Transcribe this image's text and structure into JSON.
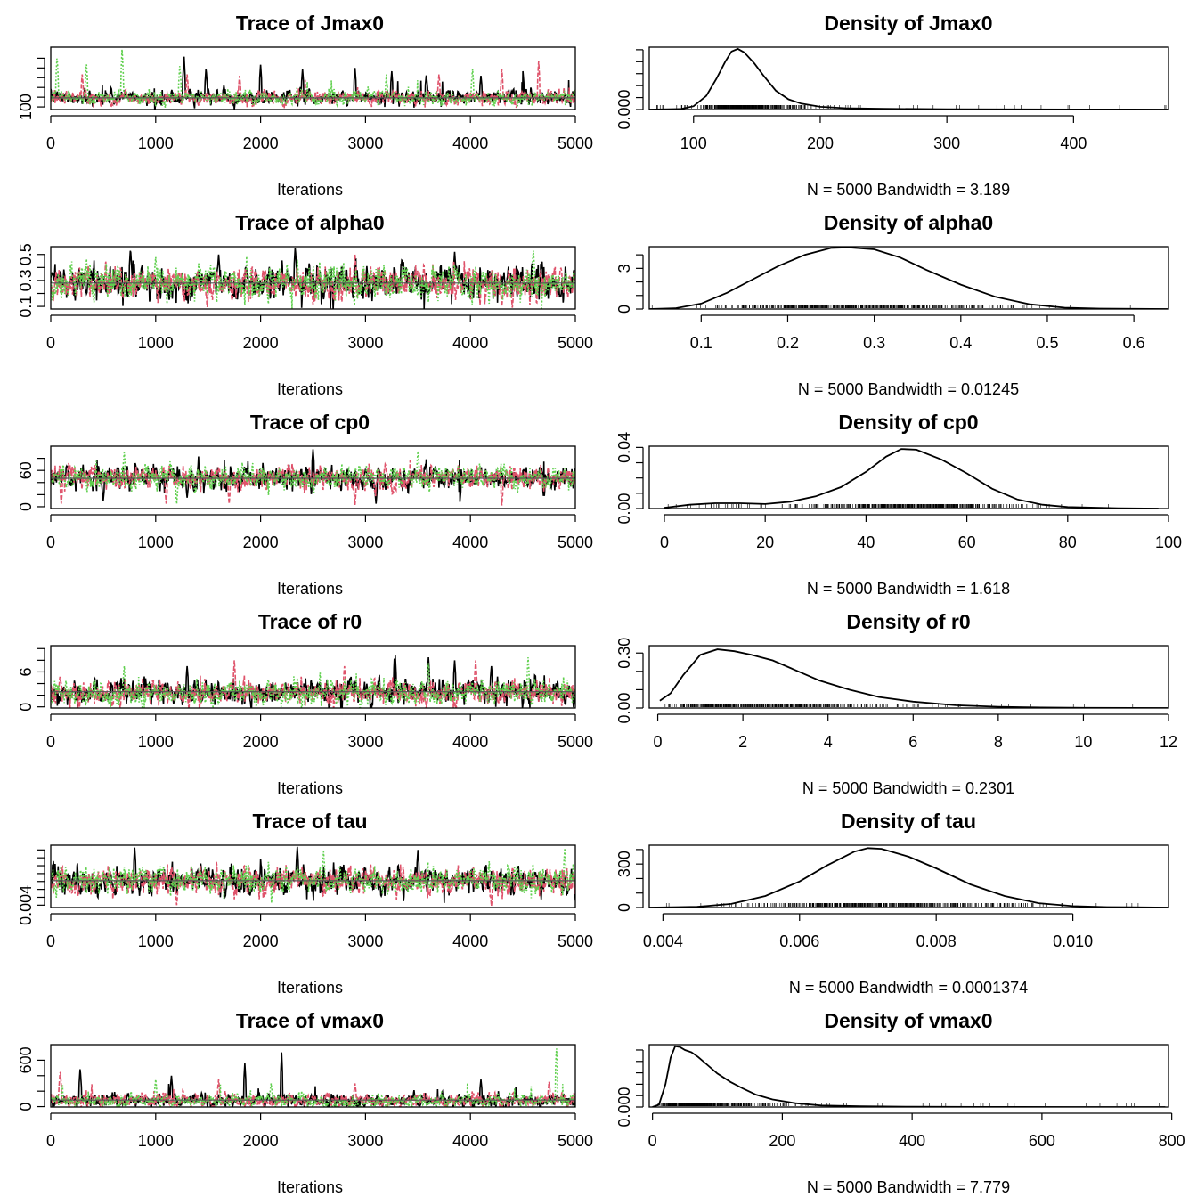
{
  "colors": {
    "chain1": "#000000",
    "chain2": "#DF536B",
    "chain3": "#61D04F"
  },
  "chart_data": [
    {
      "type": "line",
      "title": "Trace of Jmax0",
      "xlabel": "Iterations",
      "xlim": [
        0,
        5000
      ],
      "ylim": [
        96,
        192
      ],
      "x_ticks": [
        0,
        1000,
        2000,
        3000,
        4000,
        5000
      ],
      "x_tick_labels": [
        "0",
        "1000",
        "2000",
        "3000",
        "4000",
        "5000"
      ],
      "y_ticks": [
        100,
        115,
        130,
        145,
        160,
        175
      ],
      "y_tick_labels": [
        "100",
        "",
        "",
        "",
        "",
        ""
      ],
      "series": [
        {
          "color": "#000000",
          "center": 115,
          "spread": 6,
          "spikes": [
            [
              1270,
              180
            ],
            [
              1480,
              160
            ],
            [
              2000,
              165
            ],
            [
              2400,
              158
            ],
            [
              2900,
              160
            ],
            [
              3250,
              155
            ],
            [
              3580,
              150
            ],
            [
              4500,
              155
            ],
            [
              4100,
              148
            ]
          ]
        },
        {
          "color": "#DF536B",
          "center": 114,
          "spread": 6,
          "spikes": [
            [
              300,
              150
            ],
            [
              1300,
              150
            ],
            [
              1800,
              148
            ],
            [
              3700,
              150
            ],
            [
              4300,
              158
            ],
            [
              4650,
              170
            ]
          ]
        },
        {
          "color": "#61D04F",
          "center": 114,
          "spread": 6,
          "spikes": [
            [
              60,
              180
            ],
            [
              340,
              170
            ],
            [
              680,
              192
            ],
            [
              1230,
              165
            ],
            [
              3200,
              150
            ],
            [
              4020,
              160
            ]
          ]
        }
      ],
      "mean_line": 114
    },
    {
      "type": "line",
      "title": "Density of Jmax0",
      "xlabel": "N = 5000   Bandwidth = 3.189",
      "xlim": [
        65,
        475
      ],
      "ylim": [
        0,
        0.0365
      ],
      "x_ticks": [
        100,
        200,
        300,
        400
      ],
      "x_tick_labels": [
        "100",
        "200",
        "300",
        "400"
      ],
      "y_ticks": [
        0,
        0.007,
        0.014,
        0.021,
        0.028,
        0.035
      ],
      "y_tick_labels": [
        "0.000",
        "",
        "",
        "",
        "",
        ""
      ],
      "density": {
        "x": [
          65,
          90,
          100,
          110,
          118,
          125,
          130,
          135,
          140,
          148,
          155,
          165,
          175,
          185,
          200,
          220,
          250,
          300,
          350,
          400,
          475
        ],
        "y": [
          0,
          0.0003,
          0.002,
          0.008,
          0.018,
          0.028,
          0.034,
          0.0355,
          0.0335,
          0.027,
          0.02,
          0.011,
          0.006,
          0.0035,
          0.0016,
          0.0008,
          0.0004,
          0.0002,
          0.0001,
          5e-05,
          0
        ]
      }
    },
    {
      "type": "line",
      "title": "Trace of alpha0",
      "xlabel": "Iterations",
      "xlim": [
        0,
        5000
      ],
      "ylim": [
        0.08,
        0.56
      ],
      "x_ticks": [
        0,
        1000,
        2000,
        3000,
        4000,
        5000
      ],
      "x_tick_labels": [
        "0",
        "1000",
        "2000",
        "3000",
        "4000",
        "5000"
      ],
      "y_ticks": [
        0.1,
        0.2,
        0.3,
        0.4,
        0.5
      ],
      "y_tick_labels": [
        "0.1",
        "",
        "0.3",
        "",
        "0.5"
      ],
      "series": [
        {
          "color": "#000000",
          "center": 0.28,
          "spread": 0.07,
          "spikes": [
            [
              760,
              0.55
            ],
            [
              2330,
              0.56
            ],
            [
              3850,
              0.52
            ],
            [
              1600,
              0.5
            ]
          ]
        },
        {
          "color": "#DF536B",
          "center": 0.28,
          "spread": 0.07,
          "spikes": [
            [
              4300,
              0.1
            ],
            [
              4400,
              0.09
            ],
            [
              2900,
              0.5
            ]
          ]
        },
        {
          "color": "#61D04F",
          "center": 0.28,
          "spread": 0.07,
          "spikes": [
            [
              4600,
              0.53
            ],
            [
              1000,
              0.48
            ]
          ]
        }
      ],
      "mean_line": 0.28
    },
    {
      "type": "line",
      "title": "Density of alpha0",
      "xlabel": "N = 5000   Bandwidth = 0.01245",
      "xlim": [
        0.04,
        0.64
      ],
      "ylim": [
        0,
        4.6
      ],
      "x_ticks": [
        0.1,
        0.2,
        0.3,
        0.4,
        0.5,
        0.6
      ],
      "x_tick_labels": [
        "0.1",
        "0.2",
        "0.3",
        "0.4",
        "0.5",
        "0.6"
      ],
      "y_ticks": [
        0,
        1,
        2,
        3,
        4
      ],
      "y_tick_labels": [
        "0",
        "",
        "",
        "3",
        ""
      ],
      "density": {
        "x": [
          0.04,
          0.07,
          0.1,
          0.13,
          0.16,
          0.19,
          0.22,
          0.25,
          0.27,
          0.3,
          0.33,
          0.36,
          0.4,
          0.44,
          0.48,
          0.52,
          0.56,
          0.6,
          0.64
        ],
        "y": [
          0,
          0.05,
          0.4,
          1.2,
          2.2,
          3.2,
          4.0,
          4.5,
          4.55,
          4.4,
          3.8,
          2.9,
          1.8,
          0.9,
          0.35,
          0.1,
          0.03,
          0.01,
          0
        ]
      }
    },
    {
      "type": "line",
      "title": "Trace of cp0",
      "xlabel": "Iterations",
      "xlim": [
        0,
        5000
      ],
      "ylim": [
        -3,
        100
      ],
      "x_ticks": [
        0,
        1000,
        2000,
        3000,
        4000,
        5000
      ],
      "x_tick_labels": [
        "0",
        "1000",
        "2000",
        "3000",
        "4000",
        "5000"
      ],
      "y_ticks": [
        0,
        20,
        40,
        60,
        80
      ],
      "y_tick_labels": [
        "0",
        "",
        "",
        "60",
        ""
      ],
      "series": [
        {
          "color": "#000000",
          "center": 48,
          "spread": 10,
          "spikes": [
            [
              500,
              10
            ],
            [
              1300,
              15
            ],
            [
              2500,
              95
            ],
            [
              3100,
              5
            ],
            [
              3900,
              8
            ],
            [
              4700,
              10
            ]
          ]
        },
        {
          "color": "#DF536B",
          "center": 48,
          "spread": 10,
          "spikes": [
            [
              100,
              5
            ],
            [
              1100,
              5
            ],
            [
              1700,
              5
            ],
            [
              2900,
              3
            ],
            [
              4300,
              2
            ]
          ]
        },
        {
          "color": "#61D04F",
          "center": 48,
          "spread": 10,
          "spikes": [
            [
              1200,
              5
            ],
            [
              3500,
              92
            ],
            [
              700,
              90
            ]
          ]
        }
      ],
      "mean_line": 47
    },
    {
      "type": "line",
      "title": "Density of cp0",
      "xlabel": "N = 5000   Bandwidth = 1.618",
      "xlim": [
        -3,
        100
      ],
      "ylim": [
        0,
        0.0408
      ],
      "x_ticks": [
        0,
        20,
        40,
        60,
        80,
        100
      ],
      "x_tick_labels": [
        "0",
        "20",
        "40",
        "60",
        "80",
        "100"
      ],
      "y_ticks": [
        0,
        0.01,
        0.02,
        0.03,
        0.04
      ],
      "y_tick_labels": [
        "0.00",
        "",
        "",
        "",
        "0.04"
      ],
      "density": {
        "x": [
          0,
          5,
          10,
          15,
          20,
          25,
          30,
          35,
          40,
          44,
          47,
          50,
          55,
          60,
          65,
          70,
          75,
          80,
          90,
          98
        ],
        "y": [
          0.0005,
          0.0025,
          0.0035,
          0.0035,
          0.003,
          0.0045,
          0.008,
          0.014,
          0.024,
          0.034,
          0.039,
          0.0385,
          0.032,
          0.023,
          0.013,
          0.006,
          0.0025,
          0.001,
          0.0002,
          0
        ]
      }
    },
    {
      "type": "line",
      "title": "Trace of r0",
      "xlabel": "Iterations",
      "xlim": [
        0,
        5000
      ],
      "ylim": [
        -0.2,
        10.5
      ],
      "x_ticks": [
        0,
        1000,
        2000,
        3000,
        4000,
        5000
      ],
      "x_tick_labels": [
        "0",
        "1000",
        "2000",
        "3000",
        "4000",
        "5000"
      ],
      "y_ticks": [
        0,
        2,
        4,
        6,
        8,
        10
      ],
      "y_tick_labels": [
        "0",
        "",
        "",
        "6",
        "",
        ""
      ],
      "series": [
        {
          "color": "#000000",
          "center": 2.5,
          "spread": 1.2,
          "spikes": [
            [
              3280,
              10.2
            ],
            [
              3600,
              8.5
            ],
            [
              1300,
              7
            ],
            [
              3850,
              8
            ],
            [
              4200,
              7
            ]
          ]
        },
        {
          "color": "#DF536B",
          "center": 2.4,
          "spread": 1.1,
          "spikes": [
            [
              1750,
              8
            ],
            [
              2800,
              7
            ],
            [
              4050,
              8
            ]
          ]
        },
        {
          "color": "#61D04F",
          "center": 2.3,
          "spread": 1.1,
          "spikes": [
            [
              4550,
              8.5
            ],
            [
              700,
              7
            ],
            [
              3600,
              7.5
            ]
          ]
        }
      ],
      "mean_line": 2.6
    },
    {
      "type": "line",
      "title": "Density of r0",
      "xlabel": "N = 5000   Bandwidth = 0.2301",
      "xlim": [
        -0.2,
        12
      ],
      "ylim": [
        0,
        0.34
      ],
      "x_ticks": [
        0,
        2,
        4,
        6,
        8,
        10,
        12
      ],
      "x_tick_labels": [
        "0",
        "2",
        "4",
        "6",
        "8",
        "10",
        "12"
      ],
      "y_ticks": [
        0,
        0.1,
        0.2,
        0.3
      ],
      "y_tick_labels": [
        "0.00",
        "",
        "",
        "0.30"
      ],
      "density": {
        "x": [
          0.05,
          0.3,
          0.6,
          1.0,
          1.4,
          1.8,
          2.2,
          2.7,
          3.2,
          3.8,
          4.5,
          5.2,
          6.0,
          7.0,
          8.0,
          9.0,
          10.0,
          12.0
        ],
        "y": [
          0.04,
          0.08,
          0.18,
          0.29,
          0.32,
          0.31,
          0.29,
          0.26,
          0.21,
          0.15,
          0.1,
          0.06,
          0.035,
          0.015,
          0.007,
          0.003,
          0.001,
          0
        ]
      }
    },
    {
      "type": "line",
      "title": "Trace of tau",
      "xlabel": "Iterations",
      "xlim": [
        0,
        5000
      ],
      "ylim": [
        0.0037,
        0.0116
      ],
      "x_ticks": [
        0,
        1000,
        2000,
        3000,
        4000,
        5000
      ],
      "x_tick_labels": [
        "0",
        "1000",
        "2000",
        "3000",
        "4000",
        "5000"
      ],
      "y_ticks": [
        0.004,
        0.005,
        0.006,
        0.007,
        0.008,
        0.009,
        0.01,
        0.011
      ],
      "y_tick_labels": [
        "0.004",
        "",
        "",
        "",
        "",
        "",
        "",
        ""
      ],
      "series": [
        {
          "color": "#000000",
          "center": 0.0071,
          "spread": 0.0009,
          "spikes": [
            [
              800,
              0.0113
            ],
            [
              2350,
              0.0114
            ],
            [
              3500,
              0.011
            ]
          ]
        },
        {
          "color": "#DF536B",
          "center": 0.0071,
          "spread": 0.0009,
          "spikes": [
            [
              4200,
              0.0039
            ],
            [
              1200,
              0.004
            ]
          ]
        },
        {
          "color": "#61D04F",
          "center": 0.0071,
          "spread": 0.0009,
          "spikes": [
            [
              2600,
              0.0108
            ],
            [
              4900,
              0.0112
            ]
          ]
        }
      ],
      "mean_line": 0.0071
    },
    {
      "type": "line",
      "title": "Density of tau",
      "xlabel": "N = 5000   Bandwidth = 0.0001374",
      "xlim": [
        0.0038,
        0.0114
      ],
      "ylim": [
        0,
        430
      ],
      "x_ticks": [
        0.004,
        0.006,
        0.008,
        0.01
      ],
      "x_tick_labels": [
        "0.004",
        "0.006",
        "0.008",
        "0.010"
      ],
      "y_ticks": [
        0,
        100,
        200,
        300,
        400
      ],
      "y_tick_labels": [
        "0",
        "",
        "",
        "300",
        ""
      ],
      "density": {
        "x": [
          0.0038,
          0.0045,
          0.005,
          0.0055,
          0.006,
          0.0064,
          0.0068,
          0.007,
          0.0072,
          0.0076,
          0.008,
          0.0085,
          0.009,
          0.0095,
          0.01,
          0.0105,
          0.0114
        ],
        "y": [
          0,
          5,
          25,
          80,
          180,
          290,
          385,
          410,
          405,
          350,
          270,
          160,
          80,
          30,
          10,
          3,
          0
        ]
      }
    },
    {
      "type": "line",
      "title": "Trace of vmax0",
      "xlabel": "Iterations",
      "xlim": [
        0,
        5000
      ],
      "ylim": [
        -5,
        800
      ],
      "x_ticks": [
        0,
        1000,
        2000,
        3000,
        4000,
        5000
      ],
      "x_tick_labels": [
        "0",
        "1000",
        "2000",
        "3000",
        "4000",
        "5000"
      ],
      "y_ticks": [
        0,
        200,
        400,
        600
      ],
      "y_tick_labels": [
        "0",
        "",
        "",
        "600"
      ],
      "series": [
        {
          "color": "#000000",
          "center": 80,
          "spread": 45,
          "spikes": [
            [
              2200,
              700
            ],
            [
              1850,
              560
            ],
            [
              280,
              500
            ],
            [
              1150,
              400
            ],
            [
              4100,
              350
            ]
          ]
        },
        {
          "color": "#DF536B",
          "center": 80,
          "spread": 45,
          "spikes": [
            [
              90,
              480
            ],
            [
              1600,
              350
            ],
            [
              2900,
              300
            ],
            [
              4750,
              320
            ]
          ]
        },
        {
          "color": "#61D04F",
          "center": 75,
          "spread": 45,
          "spikes": [
            [
              4820,
              780
            ],
            [
              1000,
              350
            ],
            [
              2100,
              300
            ]
          ]
        }
      ],
      "mean_line": 85
    },
    {
      "type": "line",
      "title": "Density of vmax0",
      "xlabel": "N = 5000   Bandwidth = 7.779",
      "xlim": [
        -5,
        795
      ],
      "ylim": [
        0,
        0.0082
      ],
      "x_ticks": [
        0,
        200,
        400,
        600,
        800
      ],
      "x_tick_labels": [
        "0",
        "200",
        "400",
        "600",
        "800"
      ],
      "y_ticks": [
        0,
        0.0015,
        0.003,
        0.0045,
        0.006,
        0.0075
      ],
      "y_tick_labels": [
        "0.000",
        "",
        "",
        "",
        "",
        ""
      ],
      "density": {
        "x": [
          0,
          10,
          20,
          28,
          35,
          42,
          50,
          60,
          70,
          85,
          100,
          120,
          140,
          160,
          185,
          220,
          260,
          320,
          400,
          500,
          650,
          790
        ],
        "y": [
          0,
          0.0003,
          0.003,
          0.0065,
          0.008,
          0.0079,
          0.0075,
          0.0072,
          0.0066,
          0.0055,
          0.0044,
          0.0033,
          0.0024,
          0.0016,
          0.001,
          0.0005,
          0.0002,
          0.0001,
          4e-05,
          1e-05,
          0,
          0
        ]
      }
    }
  ]
}
